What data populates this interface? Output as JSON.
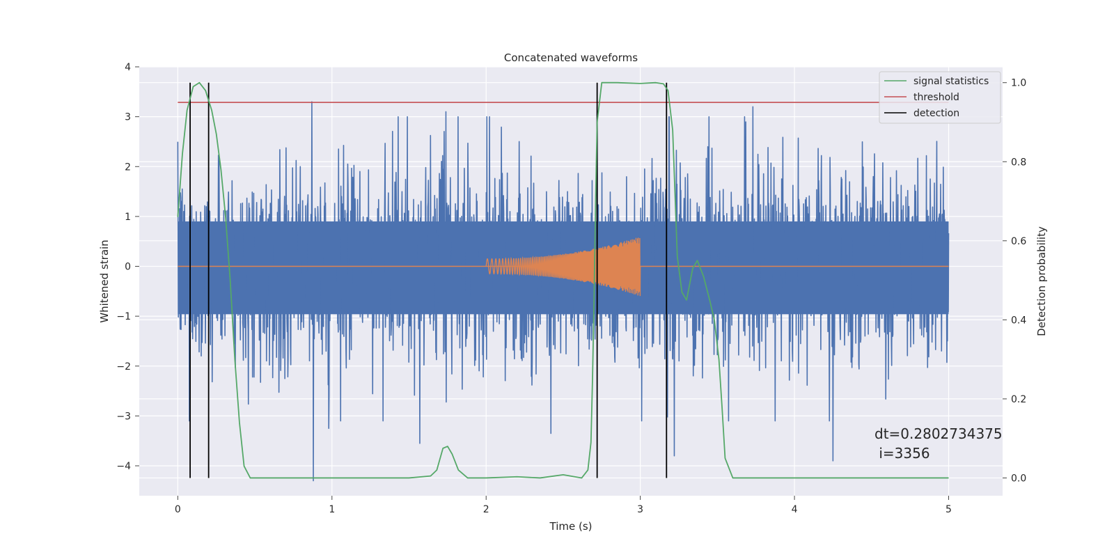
{
  "chart_data": {
    "type": "line",
    "title": "Concatenated waveforms",
    "xlabel": "Time (s)",
    "ylabel_left": "Whitened strain",
    "ylabel_right": "Detection probability",
    "xlim": [
      -0.25,
      5.35
    ],
    "ylim_left": [
      -4.6,
      4.0
    ],
    "ylim_right": [
      -0.045,
      1.04
    ],
    "x_ticks": [
      "0",
      "1",
      "2",
      "3",
      "4",
      "5"
    ],
    "x_tick_values": [
      0,
      1,
      2,
      3,
      4,
      5
    ],
    "y_ticks_left": [
      "4",
      "3",
      "2",
      "1",
      "0",
      "−1",
      "−2",
      "−3",
      "−4"
    ],
    "y_tick_values_left": [
      4,
      3,
      2,
      1,
      0,
      -1,
      -2,
      -3,
      -4
    ],
    "y_ticks_right": [
      "1.0",
      "0.8",
      "0.6",
      "0.4",
      "0.2",
      "0.0"
    ],
    "y_tick_values_right": [
      1.0,
      0.8,
      0.6,
      0.4,
      0.2,
      0.0
    ],
    "grid": true,
    "legend_position": "top-right",
    "series": [
      {
        "name": "",
        "role": "whitened strain (noise)",
        "axis": "left",
        "color": "#4c72b0",
        "x_range": [
          0,
          5
        ],
        "typical_envelope": [
          -1.6,
          1.5
        ],
        "notable_peaks": [
          {
            "x": 0.87,
            "y": 3.3
          },
          {
            "x": 0.88,
            "y": -4.3
          },
          {
            "x": 1.74,
            "y": 3.1
          },
          {
            "x": 2.72,
            "y": 3.2
          },
          {
            "x": 3.73,
            "y": 3.2
          },
          {
            "x": 2.42,
            "y": -3.35
          },
          {
            "x": 1.57,
            "y": -3.55
          },
          {
            "x": 4.25,
            "y": -3.9
          },
          {
            "x": 3.22,
            "y": -3.8
          },
          {
            "x": 0.98,
            "y": -3.25
          }
        ]
      },
      {
        "name": "",
        "role": "injected chirp",
        "axis": "left",
        "color": "#dd8452",
        "x_range": [
          0,
          5
        ],
        "chirp_start": 2.0,
        "chirp_end": 3.0,
        "amplitude_start": 0.15,
        "amplitude_end": 0.6
      },
      {
        "name": "signal statistics",
        "axis": "right",
        "color": "#55a868",
        "x": [
          0.0,
          0.03,
          0.06,
          0.1,
          0.14,
          0.18,
          0.22,
          0.25,
          0.28,
          0.31,
          0.34,
          0.37,
          0.4,
          0.43,
          0.47,
          0.6,
          1.0,
          1.5,
          1.64,
          1.68,
          1.72,
          1.75,
          1.78,
          1.82,
          1.88,
          2.0,
          2.2,
          2.35,
          2.5,
          2.62,
          2.66,
          2.68,
          2.69,
          2.7,
          2.71,
          2.72,
          2.75,
          2.78,
          2.85,
          3.0,
          3.1,
          3.15,
          3.18,
          3.21,
          3.24,
          3.27,
          3.3,
          3.34,
          3.37,
          3.41,
          3.45,
          3.48,
          3.51,
          3.53,
          3.55,
          3.6,
          4.0,
          5.0
        ],
        "values": [
          0.66,
          0.82,
          0.93,
          0.99,
          1.0,
          0.98,
          0.93,
          0.87,
          0.78,
          0.66,
          0.5,
          0.3,
          0.14,
          0.03,
          0.0,
          0.0,
          0.0,
          0.0,
          0.005,
          0.02,
          0.075,
          0.08,
          0.06,
          0.02,
          0.0,
          0.0,
          0.003,
          0.0,
          0.008,
          0.0,
          0.02,
          0.09,
          0.25,
          0.45,
          0.7,
          0.9,
          1.0,
          1.0,
          1.0,
          0.998,
          1.0,
          0.997,
          0.98,
          0.88,
          0.56,
          0.47,
          0.45,
          0.53,
          0.55,
          0.51,
          0.45,
          0.4,
          0.3,
          0.18,
          0.05,
          0.0,
          0.0,
          0.0
        ]
      },
      {
        "name": "threshold",
        "axis": "right",
        "color": "#c44e52",
        "x": [
          0,
          5
        ],
        "values": [
          0.95,
          0.95
        ]
      },
      {
        "name": "detection",
        "axis": "right",
        "color": "#000000",
        "x": [
          0.08,
          0.2,
          2.72,
          3.17
        ],
        "span": [
          0.0,
          1.0
        ]
      }
    ],
    "annotation": {
      "line1": "dt=0.2802734375",
      "line2": " i=3356"
    }
  },
  "colors": {
    "plot_background": "#eaeaf2",
    "grid": "#ffffff",
    "strain": "#4c72b0",
    "chirp": "#dd8452",
    "signal_statistics": "#55a868",
    "threshold": "#c44e52",
    "detection": "#000000"
  }
}
